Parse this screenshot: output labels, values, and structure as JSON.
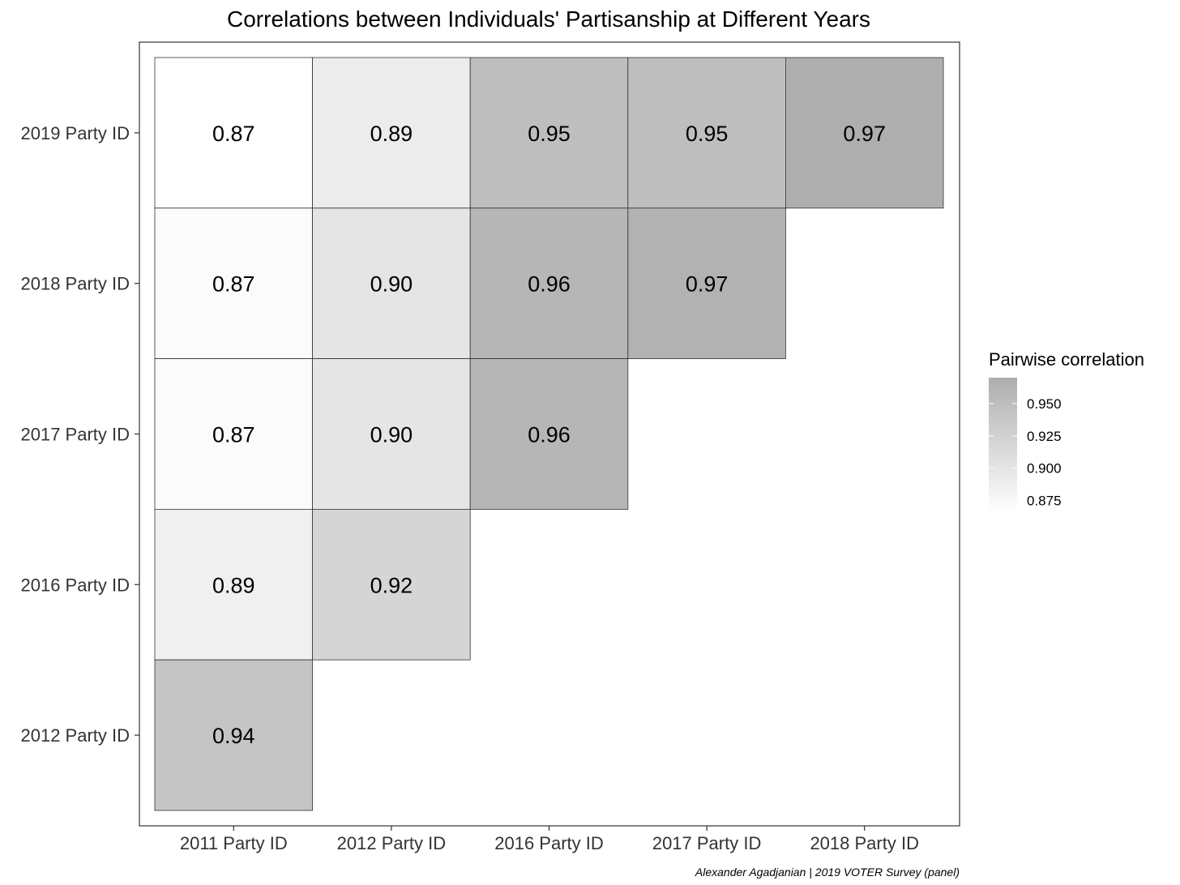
{
  "chart_data": {
    "type": "heatmap",
    "title": "Correlations between Individuals' Partisanship at Different Years",
    "x_categories": [
      "2011 Party ID",
      "2012 Party ID",
      "2016 Party ID",
      "2017 Party ID",
      "2018 Party ID"
    ],
    "y_categories": [
      "2019 Party ID",
      "2018 Party ID",
      "2017 Party ID",
      "2016 Party ID",
      "2012 Party ID"
    ],
    "cells": [
      {
        "x": "2011 Party ID",
        "y": "2019 Party ID",
        "value": 0.866,
        "label": "0.87"
      },
      {
        "x": "2012 Party ID",
        "y": "2019 Party ID",
        "value": 0.89,
        "label": "0.89"
      },
      {
        "x": "2016 Party ID",
        "y": "2019 Party ID",
        "value": 0.95,
        "label": "0.95"
      },
      {
        "x": "2017 Party ID",
        "y": "2019 Party ID",
        "value": 0.95,
        "label": "0.95"
      },
      {
        "x": "2018 Party ID",
        "y": "2019 Party ID",
        "value": 0.97,
        "label": "0.97"
      },
      {
        "x": "2011 Party ID",
        "y": "2018 Party ID",
        "value": 0.871,
        "label": "0.87"
      },
      {
        "x": "2012 Party ID",
        "y": "2018 Party ID",
        "value": 0.9,
        "label": "0.90"
      },
      {
        "x": "2016 Party ID",
        "y": "2018 Party ID",
        "value": 0.96,
        "label": "0.96"
      },
      {
        "x": "2017 Party ID",
        "y": "2018 Party ID",
        "value": 0.965,
        "label": "0.97"
      },
      {
        "x": "2011 Party ID",
        "y": "2017 Party ID",
        "value": 0.871,
        "label": "0.87"
      },
      {
        "x": "2012 Party ID",
        "y": "2017 Party ID",
        "value": 0.9,
        "label": "0.90"
      },
      {
        "x": "2016 Party ID",
        "y": "2017 Party ID",
        "value": 0.96,
        "label": "0.96"
      },
      {
        "x": "2011 Party ID",
        "y": "2016 Party ID",
        "value": 0.885,
        "label": "0.89"
      },
      {
        "x": "2012 Party ID",
        "y": "2016 Party ID",
        "value": 0.92,
        "label": "0.92"
      },
      {
        "x": "2011 Party ID",
        "y": "2012 Party ID",
        "value": 0.94,
        "label": "0.94"
      }
    ],
    "legend": {
      "title": "Pairwise correlation",
      "ticks": [
        {
          "value": 0.95,
          "label": "0.950"
        },
        {
          "value": 0.925,
          "label": "0.925"
        },
        {
          "value": 0.9,
          "label": "0.900"
        },
        {
          "value": 0.875,
          "label": "0.875"
        }
      ],
      "range": [
        0.866,
        0.97
      ],
      "placement": "right"
    },
    "colors": {
      "low": "#ffffff",
      "high": "#aeaeae",
      "panel_border": "#333333",
      "cell_border": "#333333"
    },
    "caption": "Alexander Agadjanian | 2019 VOTER Survey (panel)"
  }
}
